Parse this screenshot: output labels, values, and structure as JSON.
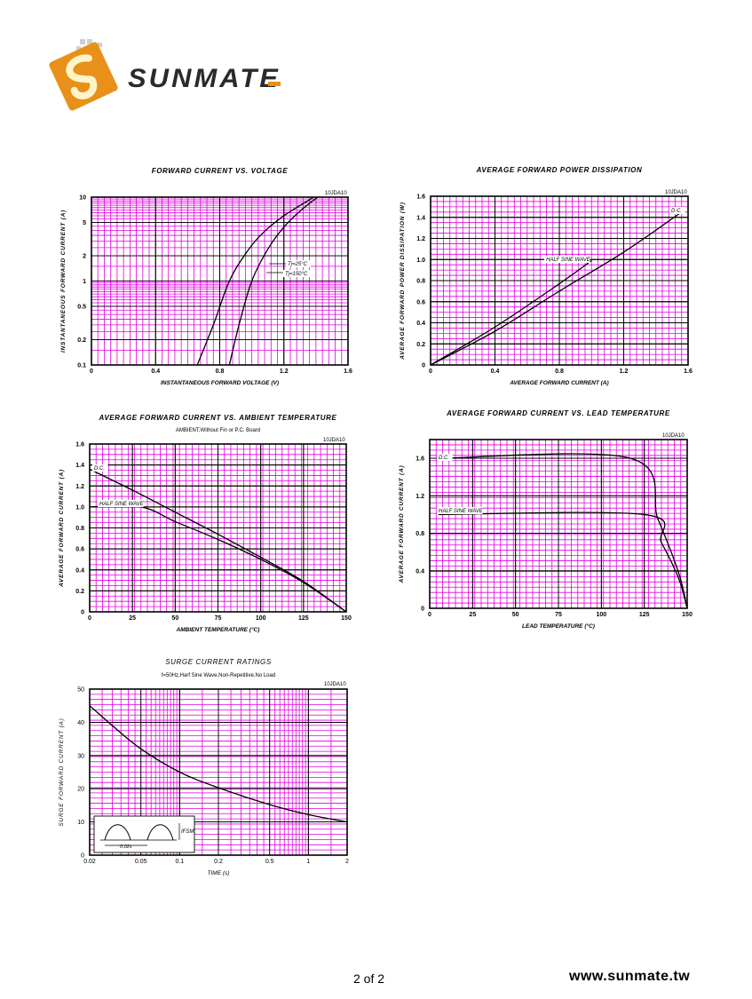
{
  "brand": {
    "logo_text": "SUNMATE",
    "accent_orange": "#E8901A",
    "text_color": "#2a2a2a"
  },
  "footer": {
    "page": "2 of 2",
    "website": "www.sunmate.tw"
  },
  "colors": {
    "grid_minor": "#E000E0",
    "grid_major": "#000000",
    "curve": "#000000"
  },
  "chart_data": [
    {
      "type": "line",
      "title": "FORWARD CURRENT VS. VOLTAGE",
      "part": "10JDA10",
      "xlabel": "INSTANTANEOUS FORWARD VOLTAGE (V)",
      "ylabel": "INSTANTANEOUS FORWARD CURRENT (A)",
      "x_scale": "linear",
      "y_scale": "log",
      "xlim": [
        0,
        1.6
      ],
      "ylim": [
        0.1,
        10
      ],
      "xticks": [
        0,
        0.4,
        0.8,
        1.2,
        1.6
      ],
      "xtick_labels": [
        "0",
        "0.4",
        "0.8",
        "1.2",
        "1.6"
      ],
      "yticks": [
        0.1,
        0.2,
        0.5,
        1,
        2,
        5,
        10
      ],
      "ytick_labels": [
        "0.1",
        "0.2",
        "0.5",
        "1",
        "2",
        "5",
        "10"
      ],
      "series": [
        {
          "name": "Tj=25°C",
          "x": [
            0.86,
            0.92,
            1.0,
            1.1,
            1.2,
            1.3,
            1.41
          ],
          "y": [
            0.1,
            0.3,
            1.0,
            2.4,
            4.4,
            6.8,
            10
          ]
        },
        {
          "name": "Tj=150°C",
          "x": [
            0.66,
            0.76,
            0.86,
            0.96,
            1.06,
            1.2,
            1.38
          ],
          "y": [
            0.1,
            0.3,
            1.0,
            2.1,
            3.6,
            6.0,
            9.8
          ]
        }
      ]
    },
    {
      "type": "line",
      "title": "AVERAGE FORWARD POWER DISSIPATION",
      "part": "10JDA10",
      "xlabel": "AVERAGE FORWARD CURRENT (A)",
      "ylabel": "AVERAGE FORWARD POWER DISSIPATION (W)",
      "x_scale": "linear",
      "y_scale": "linear",
      "xlim": [
        0,
        1.6
      ],
      "ylim": [
        0,
        1.6
      ],
      "xticks": [
        0,
        0.4,
        0.8,
        1.2,
        1.6
      ],
      "xtick_labels": [
        "0",
        "0.4",
        "0.8",
        "1.2",
        "1.6"
      ],
      "yticks": [
        0,
        0.2,
        0.4,
        0.6,
        0.8,
        1.0,
        1.2,
        1.4,
        1.6
      ],
      "ytick_labels": [
        "0",
        "0.2",
        "0.4",
        "0.6",
        "0.8",
        "1.0",
        "1.2",
        "1.4",
        "1.6"
      ],
      "series": [
        {
          "name": "D.C.",
          "x": [
            0,
            0.4,
            0.8,
            1.2,
            1.55
          ],
          "y": [
            0,
            0.32,
            0.7,
            1.07,
            1.44
          ]
        },
        {
          "name": "HALF SINE WAVE",
          "x": [
            0,
            0.4,
            0.8,
            1.0
          ],
          "y": [
            0,
            0.36,
            0.77,
            0.99
          ]
        }
      ]
    },
    {
      "type": "line",
      "title": "AVERAGE FORWARD CURRENT VS. AMBIENT TEMPERATURE",
      "subtitle": "AMBIENT,Without Fin or P.C. Board",
      "part": "10JDA10",
      "xlabel": "AMBIENT TEMPERATURE (°C)",
      "ylabel": "AVERAGE FORWARD CURRENT (A)",
      "x_scale": "linear",
      "y_scale": "linear",
      "xlim": [
        0,
        150
      ],
      "ylim": [
        0,
        1.6
      ],
      "xticks": [
        0,
        25,
        50,
        75,
        100,
        125,
        150
      ],
      "xtick_labels": [
        "0",
        "25",
        "50",
        "75",
        "100",
        "125",
        "150"
      ],
      "yticks": [
        0,
        0.2,
        0.4,
        0.6,
        0.8,
        1.0,
        1.2,
        1.4,
        1.6
      ],
      "ytick_labels": [
        "0",
        "0.2",
        "0.4",
        "0.6",
        "0.8",
        "1.0",
        "1.2",
        "1.4",
        "1.6"
      ],
      "series": [
        {
          "name": "D.C.",
          "x": [
            0,
            25,
            50,
            75,
            100,
            125,
            150
          ],
          "y": [
            1.36,
            1.16,
            0.95,
            0.74,
            0.52,
            0.29,
            0
          ]
        },
        {
          "name": "HALF SINE WAVE",
          "x": [
            0,
            30,
            50,
            75,
            100,
            125,
            150
          ],
          "y": [
            1.0,
            1.0,
            0.86,
            0.69,
            0.5,
            0.28,
            0
          ]
        }
      ]
    },
    {
      "type": "line",
      "title": "AVERAGE FORWARD CURRENT VS. LEAD TEMPERATURE",
      "part": "10JDA10",
      "xlabel": "LEAD TEMPERATURE (°C)",
      "ylabel": "AVERAGE FORWARD CURRENT (A)",
      "x_scale": "linear",
      "y_scale": "linear",
      "xlim": [
        0,
        150
      ],
      "ylim": [
        0,
        1.8
      ],
      "xticks": [
        0,
        25,
        50,
        75,
        100,
        125,
        150
      ],
      "xtick_labels": [
        "0",
        "25",
        "50",
        "75",
        "100",
        "125",
        "150"
      ],
      "yticks": [
        0,
        0.4,
        0.8,
        1.2,
        1.6
      ],
      "ytick_labels": [
        "0",
        "0.4",
        "0.8",
        "1.2",
        "1.6"
      ],
      "series": [
        {
          "name": "D.C.",
          "x": [
            5,
            117,
            133,
            145,
            150
          ],
          "y": [
            1.6,
            1.6,
            0.95,
            0.38,
            0
          ]
        },
        {
          "name": "HALF SINE WAVE",
          "x": [
            5,
            125,
            135,
            145,
            150
          ],
          "y": [
            1.0,
            1.0,
            0.7,
            0.32,
            0
          ]
        }
      ]
    },
    {
      "type": "line",
      "title": "SURGE CURRENT RATINGS",
      "subtitle": "f=50Hz,Harf Sine Wave,Non-Repetitive,No Load",
      "part": "10JDA10",
      "xlabel": "TIME (s)",
      "ylabel": "SURGE FORWARD CURRENT (A)",
      "x_scale": "log",
      "y_scale": "linear",
      "xlim": [
        0.02,
        2
      ],
      "ylim": [
        0,
        50
      ],
      "xticks": [
        0.02,
        0.05,
        0.1,
        0.2,
        0.5,
        1,
        2
      ],
      "xtick_labels": [
        "0.02",
        "0.05",
        "0.1",
        "0.2",
        "0.5",
        "1",
        "2"
      ],
      "yticks": [
        0,
        10,
        20,
        30,
        40,
        50
      ],
      "ytick_labels": [
        "0",
        "10",
        "20",
        "30",
        "40",
        "50"
      ],
      "inset": {
        "period_label": "0.02s",
        "peak_label": "IFSM"
      },
      "series": [
        {
          "name": "IFSM",
          "x": [
            0.02,
            0.03,
            0.05,
            0.1,
            0.2,
            0.5,
            1,
            2
          ],
          "y": [
            45,
            39,
            32,
            25,
            20.3,
            15.2,
            12.2,
            10
          ]
        }
      ]
    }
  ]
}
